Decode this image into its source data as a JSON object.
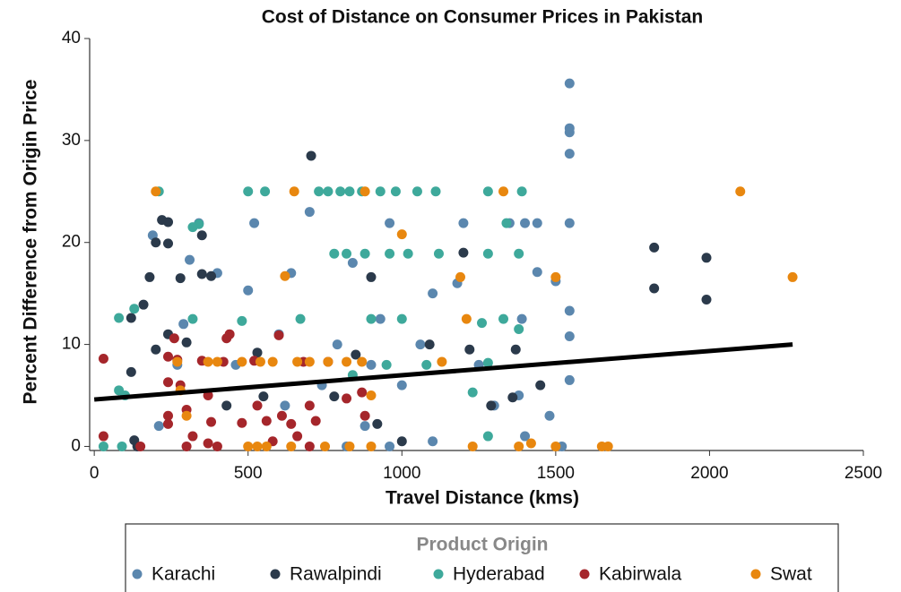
{
  "chart_data": {
    "type": "scatter",
    "title": "Cost of Distance on Consumer Prices in Pakistan",
    "x_label": "Travel Distance (kms)",
    "y_label": "Percent Difference from Origin Price",
    "legend_title": "Product Origin",
    "legend": "bottom",
    "xlim": [
      -15,
      2500
    ],
    "ylim": [
      -0.4,
      40
    ],
    "xticks": [
      0,
      500,
      1000,
      1500,
      2000,
      2500
    ],
    "yticks": [
      0,
      10,
      20,
      30,
      40
    ],
    "series": [
      {
        "name": "Karachi",
        "color": "#5b87ae",
        "x": [
          1545,
          1545,
          1545,
          1545,
          1545,
          1545,
          1545,
          1545,
          1500,
          1440,
          1440,
          1400,
          1390,
          1380,
          1200,
          1180,
          1100,
          1060,
          1000,
          960,
          930,
          900,
          880,
          840,
          790,
          740,
          700,
          640,
          600,
          520,
          500,
          460,
          400,
          340,
          310,
          290,
          270,
          190,
          210,
          1250,
          1300,
          1480,
          1520,
          1100,
          960,
          620,
          820,
          1350,
          1400
        ],
        "values": [
          35.6,
          31.2,
          30.8,
          28.7,
          21.9,
          13.3,
          10.8,
          6.5,
          16.2,
          21.9,
          17.1,
          21.9,
          12.5,
          5,
          21.9,
          16,
          15,
          10,
          6,
          21.9,
          12.5,
          8,
          2,
          18,
          10,
          6,
          23,
          17,
          11,
          21.9,
          15.3,
          8,
          17,
          21.9,
          18.3,
          12,
          8,
          20.7,
          2,
          8,
          4,
          3,
          0,
          0.5,
          0,
          4,
          0,
          21.9,
          1
        ]
      },
      {
        "name": "Rawalpindi",
        "color": "#2b3a4b",
        "x": [
          705,
          1820,
          1820,
          1990,
          1990,
          220,
          240,
          200,
          240,
          180,
          280,
          350,
          350,
          380,
          160,
          240,
          200,
          300,
          430,
          530,
          550,
          900,
          850,
          920,
          1090,
          1200,
          1220,
          1290,
          1370,
          1360,
          1450,
          120,
          120,
          130,
          140,
          780,
          1000
        ],
        "values": [
          28.5,
          19.5,
          15.5,
          18.5,
          14.4,
          22.2,
          22,
          20,
          19.9,
          16.6,
          16.5,
          20.7,
          16.9,
          16.7,
          13.9,
          11,
          9.5,
          10.2,
          4,
          9.2,
          4.9,
          16.6,
          9,
          2.2,
          10,
          19,
          9.5,
          4,
          9.5,
          4.8,
          6,
          12.6,
          7.3,
          0.6,
          0,
          4.9,
          0.5
        ]
      },
      {
        "name": "Hyderabad",
        "color": "#3ea99b",
        "x": [
          210,
          500,
          555,
          730,
          760,
          800,
          830,
          870,
          930,
          980,
          1050,
          1110,
          1280,
          1390,
          780,
          820,
          880,
          960,
          1020,
          1120,
          1280,
          1380,
          340,
          320,
          1340,
          80,
          130,
          320,
          480,
          670,
          900,
          1000,
          1260,
          1330,
          80,
          100,
          1080,
          1280,
          950,
          840,
          1230,
          1280,
          90,
          30,
          1380
        ],
        "values": [
          25,
          25,
          25,
          25,
          25,
          25,
          25,
          25,
          25,
          25,
          25,
          25,
          25,
          25,
          18.9,
          18.9,
          18.9,
          18.9,
          18.9,
          18.9,
          18.9,
          18.9,
          21.8,
          21.5,
          21.9,
          12.6,
          13.5,
          12.5,
          12.3,
          12.5,
          12.5,
          12.5,
          12.1,
          12.5,
          5.5,
          5,
          8,
          8.2,
          8,
          7,
          5.3,
          1,
          0,
          0,
          11.5
        ]
      },
      {
        "name": "Kabirwala",
        "color": "#a5262b",
        "x": [
          30,
          30,
          150,
          240,
          240,
          240,
          240,
          270,
          280,
          300,
          320,
          350,
          370,
          380,
          400,
          420,
          440,
          480,
          520,
          530,
          560,
          580,
          610,
          640,
          660,
          680,
          700,
          720,
          700,
          760,
          820,
          870,
          880,
          600,
          260,
          430,
          370,
          300
        ],
        "values": [
          8.6,
          1,
          0,
          8.8,
          6.3,
          3,
          2.2,
          8.5,
          6,
          3.6,
          1,
          8.4,
          5,
          2.4,
          0,
          8.3,
          11,
          2.3,
          8.4,
          4,
          2.5,
          0.5,
          3,
          2.2,
          1,
          8.3,
          4,
          2.5,
          0,
          8.3,
          4.7,
          5.3,
          3,
          10.9,
          10.6,
          10.6,
          0.3,
          0
        ]
      },
      {
        "name": "Swat",
        "color": "#e8870f",
        "x": [
          200,
          650,
          880,
          1330,
          2100,
          2270,
          1000,
          620,
          1190,
          1500,
          1210,
          270,
          370,
          400,
          480,
          540,
          580,
          660,
          700,
          760,
          820,
          870,
          1130,
          280,
          300,
          900,
          500,
          530,
          560,
          640,
          750,
          830,
          900,
          1230,
          1500,
          1650,
          1670,
          1380,
          1420
        ],
        "values": [
          25,
          25,
          25,
          25,
          25,
          16.6,
          20.8,
          16.7,
          16.6,
          16.6,
          12.5,
          8.3,
          8.3,
          8.3,
          8.3,
          8.3,
          8.3,
          8.3,
          8.3,
          8.3,
          8.3,
          8.3,
          8.3,
          5.5,
          3,
          5,
          0,
          0,
          0,
          0,
          0,
          0,
          0,
          0,
          0,
          0,
          0,
          0,
          0.3
        ]
      }
    ],
    "fit_line": {
      "color": "#000000",
      "x": [
        0,
        2270
      ],
      "values": [
        4.6,
        10
      ]
    }
  }
}
